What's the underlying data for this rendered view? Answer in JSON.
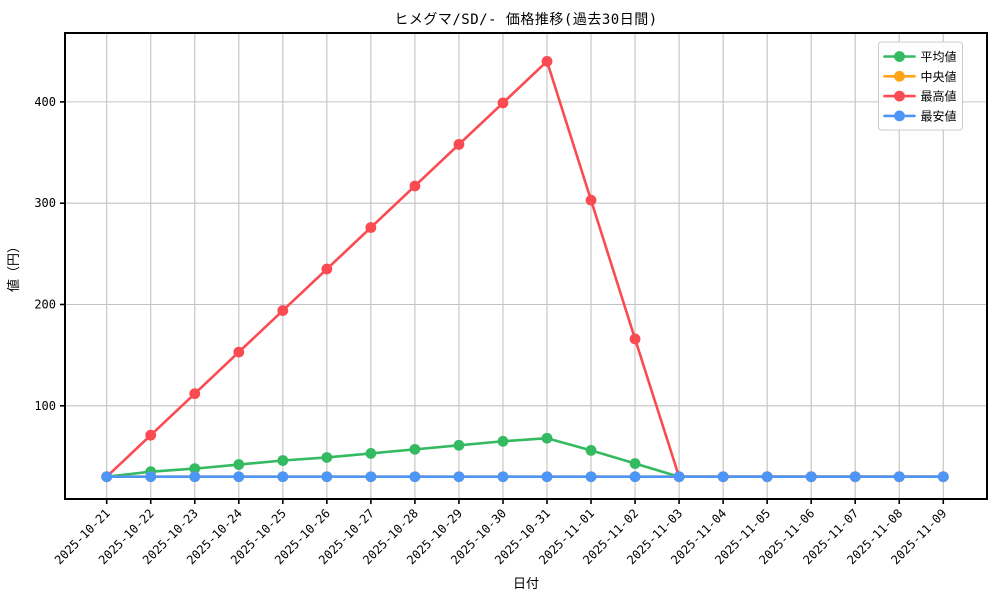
{
  "chart_data": {
    "type": "line",
    "title": "ヒメグマ/SD/- 価格推移(過去30日間)",
    "xlabel": "日付",
    "ylabel": "値（円）",
    "categories": [
      "2025-10-21",
      "2025-10-22",
      "2025-10-23",
      "2025-10-24",
      "2025-10-25",
      "2025-10-26",
      "2025-10-27",
      "2025-10-28",
      "2025-10-29",
      "2025-10-30",
      "2025-10-31",
      "2025-11-01",
      "2025-11-02",
      "2025-11-03",
      "2025-11-04",
      "2025-11-05",
      "2025-11-06",
      "2025-11-07",
      "2025-11-08",
      "2025-11-09"
    ],
    "series": [
      {
        "key": "avg",
        "name": "平均値",
        "color": "#34ba61",
        "values": [
          30,
          35,
          38,
          42,
          46,
          49,
          53,
          57,
          61,
          65,
          68,
          56,
          43,
          30,
          30,
          30,
          30,
          30,
          30,
          30
        ]
      },
      {
        "key": "median",
        "name": "中央値",
        "color": "#ffa319",
        "values": [
          30,
          30,
          30,
          30,
          30,
          30,
          30,
          30,
          30,
          30,
          30,
          30,
          30,
          30,
          30,
          30,
          30,
          30,
          30,
          30
        ]
      },
      {
        "key": "max",
        "name": "最高値",
        "color": "#fa4b52",
        "values": [
          30,
          71,
          112,
          153,
          194,
          235,
          276,
          317,
          358,
          399,
          440,
          303,
          166,
          30,
          30,
          30,
          30,
          30,
          30,
          30
        ]
      },
      {
        "key": "min",
        "name": "最安値",
        "color": "#4d96f8",
        "values": [
          30,
          30,
          30,
          30,
          30,
          30,
          30,
          30,
          30,
          30,
          30,
          30,
          30,
          30,
          30,
          30,
          30,
          30,
          30,
          30
        ]
      }
    ],
    "yticks": [
      100,
      200,
      300,
      400
    ],
    "ylim": [
      8,
      468
    ],
    "grid": true,
    "legend_position": "upper right"
  }
}
